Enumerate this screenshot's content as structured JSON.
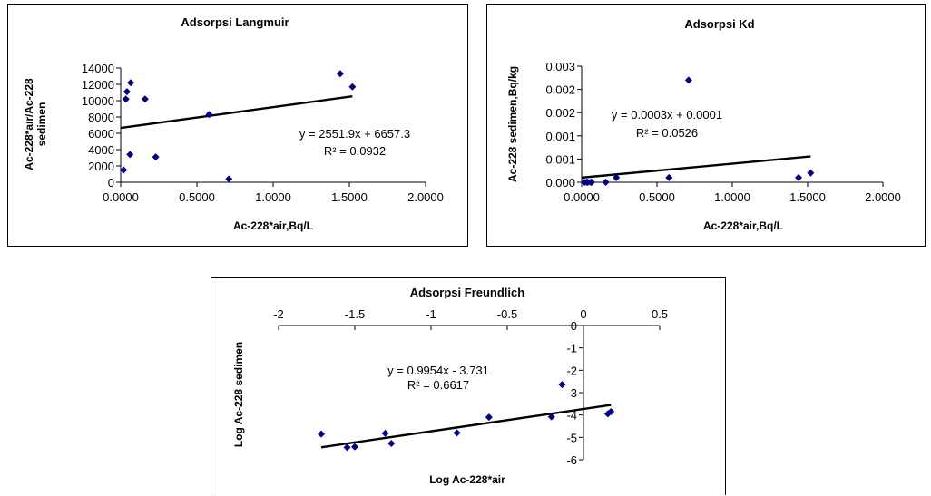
{
  "chart_data": [
    {
      "type": "scatter",
      "title": "Adsorpsi Langmuir",
      "xlabel": "Ac-228*air,Bq/L",
      "ylabel": "Ac-228*air/Ac-228 sedimen",
      "ylabel_lines": [
        "Ac-228*air/Ac-228",
        "sedimen"
      ],
      "xlim": [
        0,
        2
      ],
      "ylim": [
        0,
        14000
      ],
      "xticks": [
        0,
        0.5,
        1,
        1.5,
        2
      ],
      "xtick_labels": [
        "0.0000",
        "0.5000",
        "1.0000",
        "1.5000",
        "2.0000"
      ],
      "yticks": [
        0,
        2000,
        4000,
        6000,
        8000,
        10000,
        12000,
        14000
      ],
      "ytick_labels": [
        "0",
        "2000",
        "4000",
        "6000",
        "8000",
        "10000",
        "12000",
        "14000"
      ],
      "grid": false,
      "series": [
        {
          "x": [
            0.019,
            0.034,
            0.041,
            0.061,
            0.066,
            0.16,
            0.23,
            0.58,
            0.71,
            1.44,
            1.52
          ],
          "y": [
            1500,
            10200,
            11100,
            3400,
            12200,
            10200,
            3100,
            8300,
            400,
            13300,
            11700
          ]
        }
      ],
      "trendline": {
        "slope": 2551.9,
        "intercept": 6657.3,
        "x_range": [
          0,
          1.52
        ]
      },
      "equation": "y = 2551.9x + 6657.3",
      "r2": "R² = 0.0932"
    },
    {
      "type": "scatter",
      "title": "Adsorpsi Kd",
      "xlabel": "Ac-228*air,Bq/L",
      "ylabel": "Ac-228 sedimen,Bq/kg",
      "ylabel_lines": [
        "Ac-228 sedimen,Bq/kg"
      ],
      "xlim": [
        0,
        2
      ],
      "ylim": [
        0,
        0.0025
      ],
      "xticks": [
        0,
        0.5,
        1,
        1.5,
        2
      ],
      "xtick_labels": [
        "0.0000",
        "0.5000",
        "1.0000",
        "1.5000",
        "2.0000"
      ],
      "yticks": [
        0,
        0.0005,
        0.001,
        0.0015,
        0.002,
        0.0025
      ],
      "ytick_labels": [
        "0.000",
        "0.001",
        "0.001",
        "0.002",
        "0.002",
        "0.003"
      ],
      "grid": false,
      "series": [
        {
          "x": [
            0.019,
            0.034,
            0.041,
            0.061,
            0.066,
            0.16,
            0.23,
            0.58,
            0.71,
            1.44,
            1.52
          ],
          "y": [
            0.0,
            0.0,
            0.0,
            0.0,
            0.0,
            0.0,
            0.0001,
            0.0001,
            0.0022,
            0.0001,
            0.0002
          ]
        }
      ],
      "trendline": {
        "slope": 0.0003,
        "intercept": 0.0001,
        "x_range": [
          0,
          1.52
        ]
      },
      "equation": "y = 0.0003x + 0.0001",
      "r2": "R² = 0.0526"
    },
    {
      "type": "scatter",
      "title": "Adsorpsi Freundlich",
      "xlabel": "Log Ac-228*air",
      "ylabel": "Log Ac-228 sedimen",
      "ylabel_lines": [
        "Log Ac-228 sedimen"
      ],
      "xlim": [
        -2,
        0.5
      ],
      "ylim": [
        -6,
        0
      ],
      "xticks": [
        -2,
        -1.5,
        -1,
        -0.5,
        0,
        0.5
      ],
      "xtick_labels": [
        "-2",
        "-1.5",
        "-1",
        "-0.5",
        "0",
        "0.5"
      ],
      "yticks": [
        0,
        -1,
        -2,
        -3,
        -4,
        -5,
        -6
      ],
      "ytick_labels": [
        "0",
        "-1",
        "-2",
        "-3",
        "-4",
        "-5",
        "-6"
      ],
      "grid": false,
      "series": [
        {
          "x": [
            -1.72,
            -1.55,
            -1.5,
            -1.3,
            -1.26,
            -0.83,
            -0.62,
            -0.21,
            -0.14,
            0.16,
            0.18
          ],
          "y": [
            -4.85,
            -5.45,
            -5.42,
            -4.82,
            -5.27,
            -4.8,
            -4.1,
            -4.08,
            -2.64,
            -3.95,
            -3.85
          ]
        }
      ],
      "trendline": {
        "slope": 0.9954,
        "intercept": -3.731,
        "x_range": [
          -1.72,
          0.18
        ]
      },
      "equation": "y = 0.9954x - 3.731",
      "r2": "R² = 0.6617"
    }
  ]
}
